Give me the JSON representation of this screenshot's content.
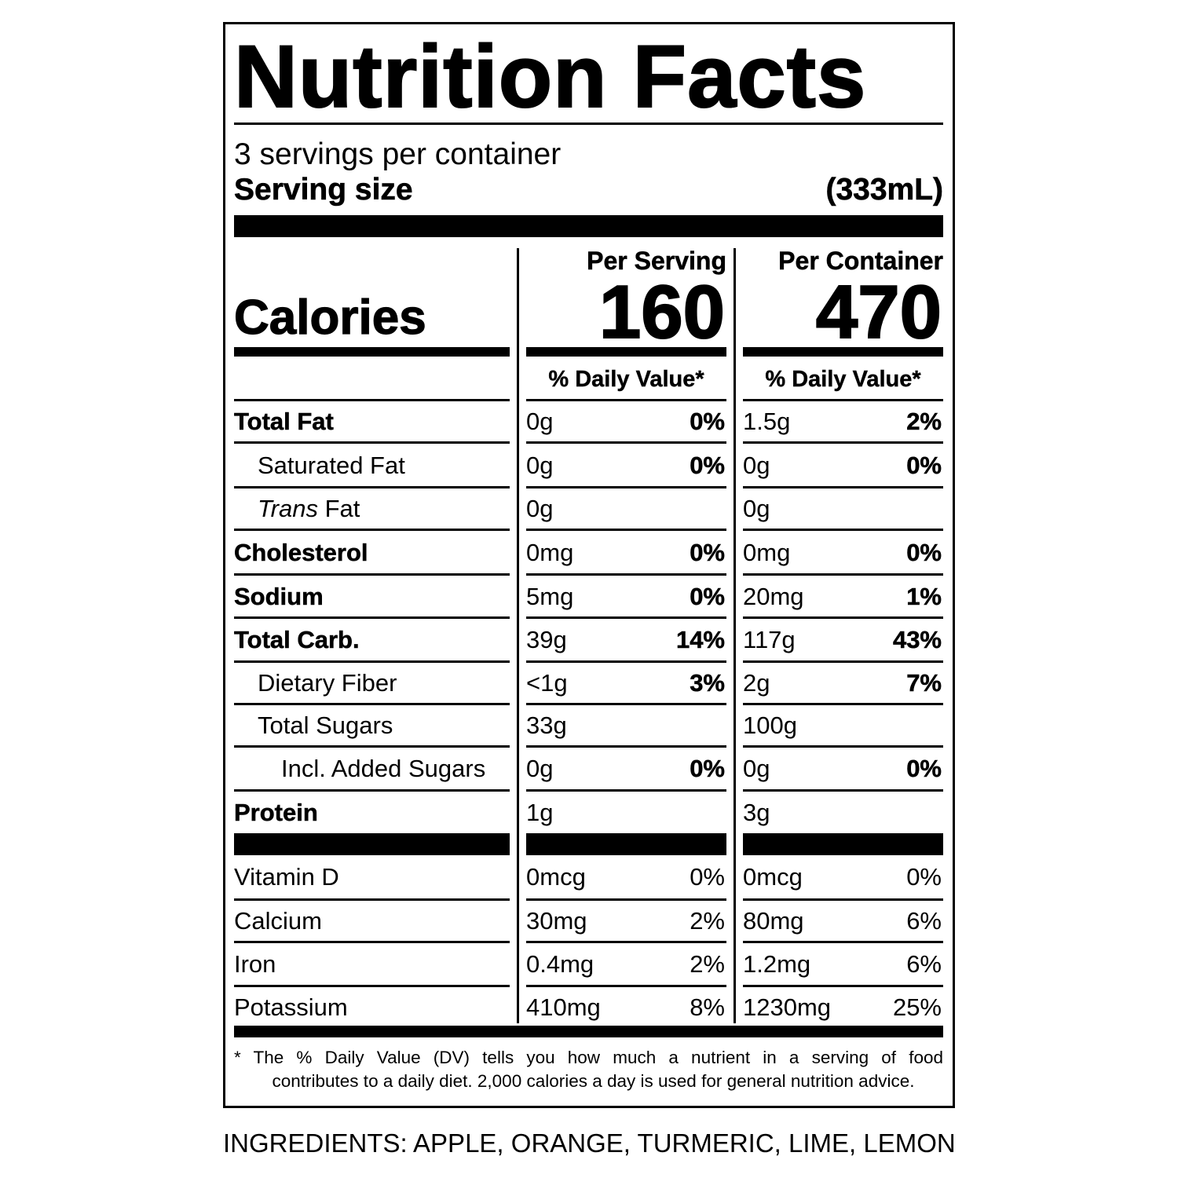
{
  "label": {
    "title": "Nutrition Facts",
    "servings_per_container": "3 servings per container",
    "serving_size_label": "Serving size",
    "serving_size_value": "(333mL)",
    "per_serving_label": "Per Serving",
    "per_container_label": "Per Container",
    "calories_label": "Calories",
    "calories_per_serving": "160",
    "calories_per_container": "470",
    "daily_value_header": "% Daily Value*",
    "nutrients": [
      {
        "name": "Total Fat",
        "bold": true,
        "indent": 0,
        "serving_amount": "0g",
        "serving_dv": "0%",
        "container_amount": "1.5g",
        "container_dv": "2%"
      },
      {
        "name": "Saturated Fat",
        "bold": false,
        "indent": 1,
        "serving_amount": "0g",
        "serving_dv": "0%",
        "container_amount": "0g",
        "container_dv": "0%"
      },
      {
        "name_italic": "Trans",
        "name": " Fat",
        "bold": false,
        "indent": 1,
        "serving_amount": "0g",
        "serving_dv": "",
        "container_amount": "0g",
        "container_dv": ""
      },
      {
        "name": "Cholesterol",
        "bold": true,
        "indent": 0,
        "serving_amount": "0mg",
        "serving_dv": "0%",
        "container_amount": "0mg",
        "container_dv": "0%"
      },
      {
        "name": "Sodium",
        "bold": true,
        "indent": 0,
        "serving_amount": "5mg",
        "serving_dv": "0%",
        "container_amount": "20mg",
        "container_dv": "1%"
      },
      {
        "name": "Total Carb.",
        "bold": true,
        "indent": 0,
        "serving_amount": "39g",
        "serving_dv": "14%",
        "container_amount": "117g",
        "container_dv": "43%"
      },
      {
        "name": "Dietary Fiber",
        "bold": false,
        "indent": 1,
        "serving_amount": "<1g",
        "serving_dv": "3%",
        "container_amount": "2g",
        "container_dv": "7%"
      },
      {
        "name": "Total Sugars",
        "bold": false,
        "indent": 1,
        "serving_amount": "33g",
        "serving_dv": "",
        "container_amount": "100g",
        "container_dv": ""
      },
      {
        "name": "Incl. Added Sugars",
        "bold": false,
        "indent": 2,
        "serving_amount": "0g",
        "serving_dv": "0%",
        "container_amount": "0g",
        "container_dv": "0%"
      },
      {
        "name": "Protein",
        "bold": true,
        "indent": 0,
        "serving_amount": "1g",
        "serving_dv": "",
        "container_amount": "3g",
        "container_dv": ""
      }
    ],
    "vitamins": [
      {
        "name": "Vitamin D",
        "serving_amount": "0mcg",
        "serving_dv": "0%",
        "container_amount": "0mcg",
        "container_dv": "0%"
      },
      {
        "name": "Calcium",
        "serving_amount": "30mg",
        "serving_dv": "2%",
        "container_amount": "80mg",
        "container_dv": "6%"
      },
      {
        "name": "Iron",
        "serving_amount": "0.4mg",
        "serving_dv": "2%",
        "container_amount": "1.2mg",
        "container_dv": "6%"
      },
      {
        "name": "Potassium",
        "serving_amount": "410mg",
        "serving_dv": "8%",
        "container_amount": "1230mg",
        "container_dv": "25%"
      }
    ],
    "footnote_line1": "* The % Daily Value (DV) tells you how much a nutrient in a serving of food",
    "footnote_line2": "contributes to a daily diet. 2,000 calories a day is used for general nutrition advice."
  },
  "ingredients": "INGREDIENTS: APPLE, ORANGE, TURMERIC, LIME, LEMON"
}
